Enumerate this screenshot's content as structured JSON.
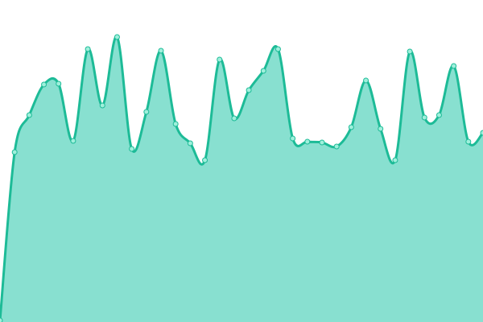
{
  "chart_data": {
    "type": "area",
    "title": "",
    "xlabel": "",
    "ylabel": "",
    "x": [
      0,
      1,
      2,
      3,
      4,
      5,
      6,
      7,
      8,
      9,
      10,
      11,
      12,
      13,
      14,
      15,
      16,
      17,
      18,
      19,
      20,
      21,
      22,
      23,
      24,
      25,
      26,
      27,
      28,
      29,
      30,
      31,
      32,
      33
    ],
    "values": [
      2,
      211,
      257,
      295,
      296,
      225,
      339,
      269,
      354,
      215,
      261,
      337,
      246,
      222,
      201,
      326,
      253,
      288,
      312,
      339,
      228,
      224,
      223,
      218,
      242,
      300,
      240,
      201,
      336,
      254,
      257,
      318,
      224,
      235
    ],
    "ylim": [
      0,
      400
    ],
    "grid": false,
    "axes_visible": false,
    "smooth": true,
    "markers": true,
    "colors": {
      "line": "#1dbb97",
      "fill": "#88e0d0",
      "marker_fill": "#9ff0dc",
      "marker_stroke": "#1dbb97"
    }
  }
}
